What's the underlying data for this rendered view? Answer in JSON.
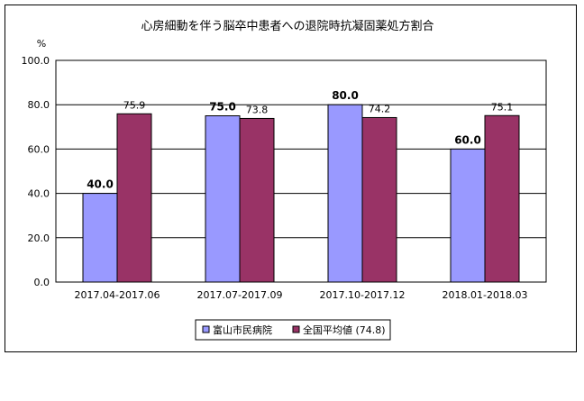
{
  "chart_data": {
    "type": "bar",
    "title": "心房細動を伴う脳卒中患者への退院時抗凝固薬処方割合",
    "ylabel": "%",
    "xlabel": "",
    "ylim": [
      0,
      100
    ],
    "yticks": [
      "0.0",
      "20.0",
      "40.0",
      "60.0",
      "80.0",
      "100.0"
    ],
    "grid": true,
    "legend_position": "bottom",
    "categories": [
      "2017.04-2017.06",
      "2017.07-2017.09",
      "2017.10-2017.12",
      "2018.01-2018.03"
    ],
    "series": [
      {
        "name": "富山市民病院",
        "values": [
          40.0,
          75.0,
          80.0,
          60.0
        ],
        "labels": [
          "40.0",
          "75.0",
          "80.0",
          "60.0"
        ],
        "color": "#9999ff",
        "label_bold": true
      },
      {
        "name": "全国平均値 (74.8)",
        "values": [
          75.9,
          73.8,
          74.2,
          75.1
        ],
        "labels": [
          "75.9",
          "73.8",
          "74.2",
          "75.1"
        ],
        "color": "#993366",
        "label_bold": false
      }
    ]
  }
}
